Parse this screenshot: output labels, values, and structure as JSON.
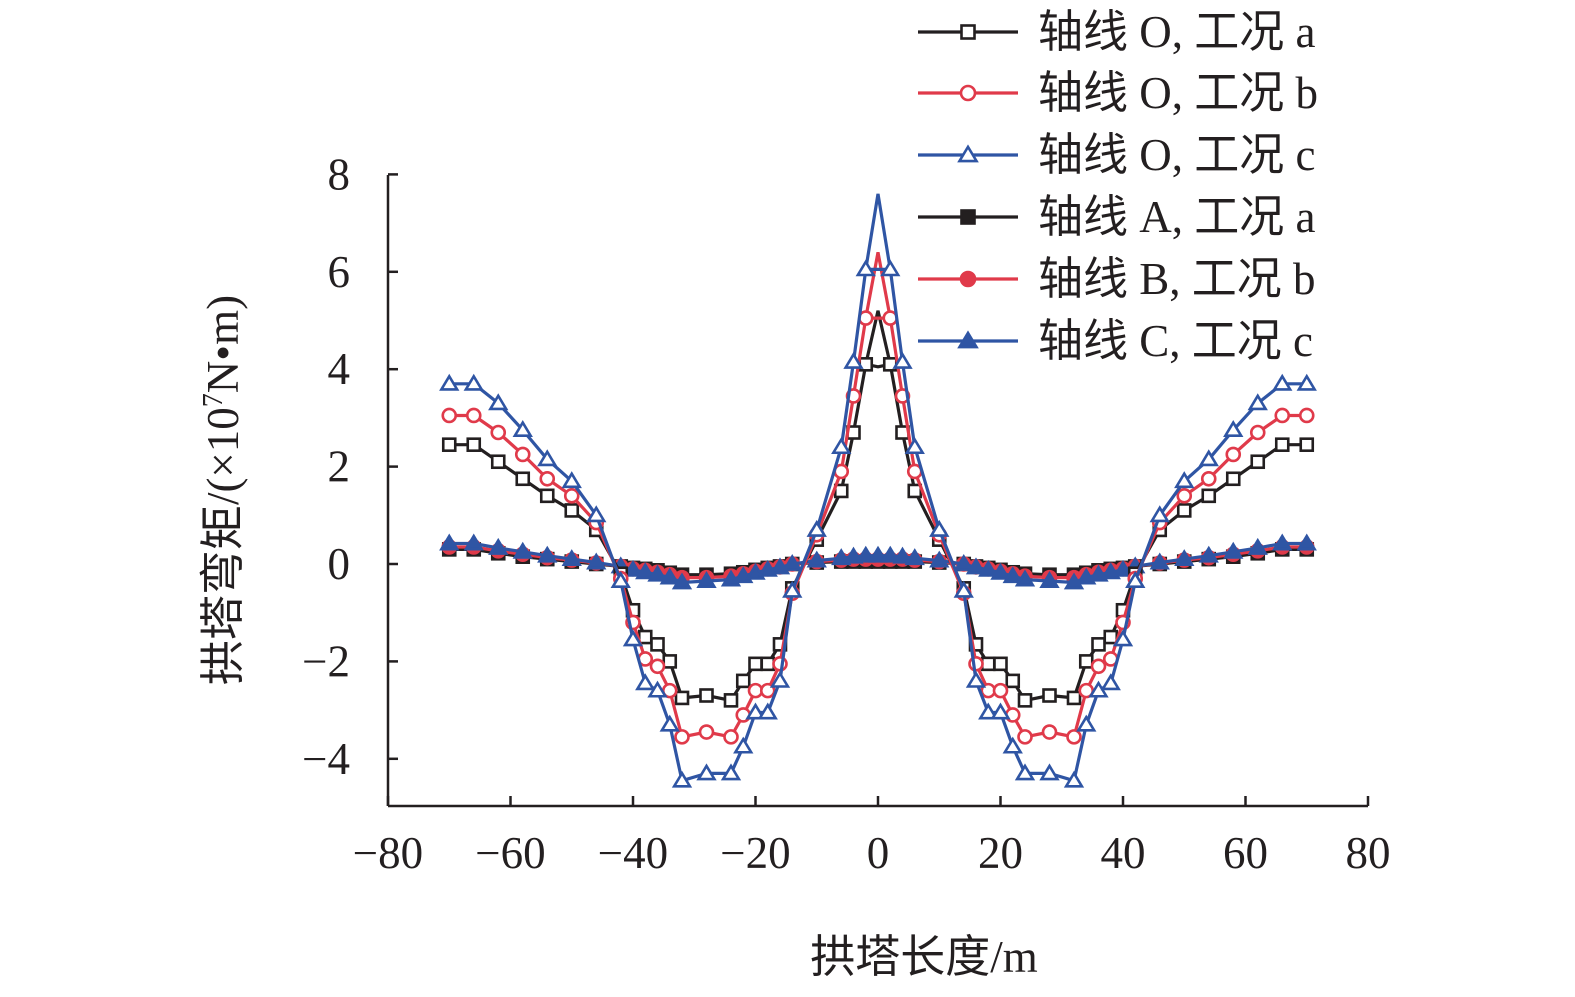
{
  "chart_data": {
    "type": "line",
    "title": "",
    "xlabel": "拱塔长度/m",
    "ylabel_main": "拱塔弯矩/(×10",
    "ylabel_sup": "7",
    "ylabel_tail": "N•m)",
    "xlim": [
      -80,
      80
    ],
    "ylim": [
      -5,
      8
    ],
    "xticks": [
      -80,
      -60,
      -40,
      -20,
      0,
      20,
      40,
      60,
      80
    ],
    "yticks": [
      -4,
      -2,
      0,
      2,
      4,
      6,
      8
    ],
    "xtick_labels": [
      "−80",
      "−60",
      "−40",
      "−20",
      "0",
      "20",
      "40",
      "60",
      "80"
    ],
    "ytick_labels": [
      "−4",
      "−2",
      "0",
      "2",
      "4",
      "6",
      "8"
    ],
    "grid": false,
    "legend_position": "top-right",
    "x": [
      -70,
      -66,
      -62,
      -58,
      -54,
      -50,
      -46,
      -42,
      -40,
      -38,
      -36,
      -34,
      -32,
      -28,
      -24,
      -22,
      -20,
      -18,
      -16,
      -14,
      -10,
      -6,
      -4,
      -2,
      0,
      2,
      4,
      6,
      10,
      14,
      16,
      18,
      20,
      22,
      24,
      28,
      32,
      34,
      36,
      38,
      40,
      42,
      46,
      50,
      54,
      58,
      62,
      66,
      70
    ],
    "series": [
      {
        "name": "轴线 O, 工况 a",
        "color": "#231f20",
        "marker": "square-open",
        "values": [
          2.45,
          2.45,
          2.1,
          1.75,
          1.4,
          1.1,
          0.7,
          -0.2,
          -0.95,
          -1.5,
          -1.65,
          -2.0,
          -2.75,
          -2.7,
          -2.8,
          -2.4,
          -2.05,
          -2.05,
          -1.65,
          -0.5,
          0.5,
          1.5,
          2.7,
          4.1,
          4.05,
          4.1,
          2.7,
          1.5,
          0.5,
          -0.5,
          -1.65,
          -2.05,
          -2.05,
          -2.4,
          -2.8,
          -2.7,
          -2.75,
          -2.0,
          -1.65,
          -1.5,
          -0.95,
          -0.2,
          0.7,
          1.1,
          1.4,
          1.75,
          2.1,
          2.45,
          2.45
        ]
      },
      {
        "name": "轴线 O, 工况 b",
        "color": "#e03a4a",
        "marker": "circle-open",
        "values": [
          3.05,
          3.05,
          2.7,
          2.25,
          1.75,
          1.4,
          0.85,
          -0.3,
          -1.2,
          -1.95,
          -2.1,
          -2.6,
          -3.55,
          -3.45,
          -3.55,
          -3.1,
          -2.6,
          -2.6,
          -2.05,
          -0.6,
          0.6,
          1.9,
          3.45,
          5.05,
          5.05,
          5.05,
          3.45,
          1.9,
          0.6,
          -0.6,
          -2.05,
          -2.6,
          -2.6,
          -3.1,
          -3.55,
          -3.45,
          -3.55,
          -2.6,
          -2.1,
          -1.95,
          -1.2,
          -0.3,
          0.85,
          1.4,
          1.75,
          2.25,
          2.7,
          3.05,
          3.05
        ]
      },
      {
        "name": "轴线 O, 工况 c",
        "color": "#2f55a4",
        "marker": "triangle-open",
        "values": [
          3.7,
          3.7,
          3.3,
          2.75,
          2.15,
          1.7,
          1.0,
          -0.35,
          -1.55,
          -2.45,
          -2.6,
          -3.3,
          -4.45,
          -4.3,
          -4.3,
          -3.75,
          -3.05,
          -3.05,
          -2.4,
          -0.55,
          0.7,
          2.4,
          4.15,
          6.05,
          6.05,
          6.05,
          4.15,
          2.4,
          0.7,
          -0.55,
          -2.4,
          -3.05,
          -3.05,
          -3.75,
          -4.3,
          -4.3,
          -4.45,
          -3.3,
          -2.6,
          -2.45,
          -1.55,
          -0.35,
          1.0,
          1.7,
          2.15,
          2.75,
          3.3,
          3.7,
          3.7
        ]
      },
      {
        "name": "轴线 A, 工况 a",
        "color": "#231f20",
        "marker": "square-filled",
        "values": [
          0.3,
          0.3,
          0.22,
          0.15,
          0.1,
          0.05,
          0.0,
          -0.05,
          -0.08,
          -0.1,
          -0.13,
          -0.18,
          -0.22,
          -0.22,
          -0.2,
          -0.17,
          -0.12,
          -0.08,
          -0.05,
          0.0,
          0.03,
          0.05,
          0.05,
          0.05,
          0.05,
          0.05,
          0.05,
          0.05,
          0.03,
          0.0,
          -0.05,
          -0.08,
          -0.12,
          -0.17,
          -0.2,
          -0.22,
          -0.22,
          -0.18,
          -0.13,
          -0.1,
          -0.08,
          -0.05,
          0.0,
          0.05,
          0.1,
          0.15,
          0.22,
          0.3,
          0.3
        ]
      },
      {
        "name": "轴线 B, 工况 b",
        "color": "#e03a4a",
        "marker": "circle-filled",
        "values": [
          0.35,
          0.35,
          0.27,
          0.2,
          0.13,
          0.08,
          0.02,
          -0.05,
          -0.1,
          -0.13,
          -0.17,
          -0.22,
          -0.28,
          -0.28,
          -0.25,
          -0.2,
          -0.15,
          -0.1,
          -0.06,
          0.0,
          0.05,
          0.08,
          0.1,
          0.1,
          0.1,
          0.1,
          0.1,
          0.08,
          0.05,
          0.0,
          -0.06,
          -0.1,
          -0.15,
          -0.2,
          -0.25,
          -0.28,
          -0.28,
          -0.22,
          -0.17,
          -0.13,
          -0.1,
          -0.05,
          0.02,
          0.08,
          0.13,
          0.2,
          0.27,
          0.35,
          0.35
        ]
      },
      {
        "name": "轴线 C, 工况 c",
        "color": "#2f55a4",
        "marker": "triangle-filled",
        "values": [
          0.42,
          0.42,
          0.33,
          0.25,
          0.17,
          0.1,
          0.03,
          -0.05,
          -0.12,
          -0.17,
          -0.22,
          -0.28,
          -0.38,
          -0.35,
          -0.32,
          -0.25,
          -0.18,
          -0.12,
          -0.07,
          0.0,
          0.07,
          0.12,
          0.15,
          0.17,
          0.17,
          0.17,
          0.15,
          0.12,
          0.07,
          0.0,
          -0.07,
          -0.12,
          -0.18,
          -0.25,
          -0.32,
          -0.35,
          -0.38,
          -0.28,
          -0.22,
          -0.17,
          -0.12,
          -0.05,
          0.03,
          0.1,
          0.17,
          0.25,
          0.33,
          0.42,
          0.42
        ]
      }
    ],
    "peak_lines": [
      {
        "series": 0,
        "x": 0,
        "value": 5.2
      },
      {
        "series": 1,
        "x": 0,
        "value": 6.4
      },
      {
        "series": 2,
        "x": 0,
        "value": 7.6
      }
    ]
  }
}
